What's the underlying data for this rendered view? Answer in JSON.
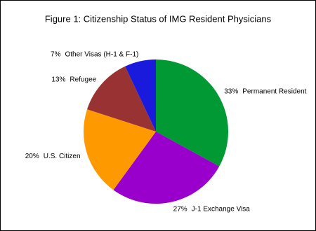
{
  "chart_data": {
    "type": "pie",
    "title": "Figure 1: Citizenship Status of IMG Resident Physicians",
    "categories": [
      "Permanent Resident",
      "J-1 Exchange Visa",
      "U.S. Citizen",
      "Refugee",
      "Other Visas (H-1 & F-1)"
    ],
    "values": [
      33,
      27,
      20,
      13,
      7
    ],
    "value_labels": [
      "33%",
      "27%",
      "20%",
      "13%",
      "7%"
    ],
    "colors": [
      "#009933",
      "#9900cc",
      "#ff9900",
      "#993333",
      "#1a1add"
    ]
  }
}
